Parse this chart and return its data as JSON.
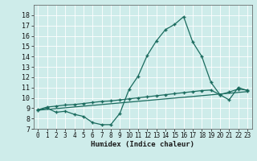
{
  "xlabel": "Humidex (Indice chaleur)",
  "bg_color": "#ceecea",
  "line_color": "#1a6b5e",
  "grid_color": "#b8dbd8",
  "xlim": [
    -0.5,
    23.5
  ],
  "ylim": [
    7,
    19
  ],
  "yticks": [
    7,
    8,
    9,
    10,
    11,
    12,
    13,
    14,
    15,
    16,
    17,
    18
  ],
  "xticks": [
    0,
    1,
    2,
    3,
    4,
    5,
    6,
    7,
    8,
    9,
    10,
    11,
    12,
    13,
    14,
    15,
    16,
    17,
    18,
    19,
    20,
    21,
    22,
    23
  ],
  "line1_x": [
    0,
    1,
    2,
    3,
    4,
    5,
    6,
    7,
    8,
    9,
    10,
    11,
    12,
    13,
    14,
    15,
    16,
    17,
    18,
    19,
    20,
    21,
    22,
    23
  ],
  "line1_y": [
    8.8,
    9.0,
    8.6,
    8.7,
    8.4,
    8.2,
    7.6,
    7.4,
    7.4,
    8.5,
    10.8,
    12.1,
    14.1,
    15.5,
    16.6,
    17.1,
    17.85,
    15.4,
    14.0,
    11.5,
    10.3,
    9.8,
    11.0,
    10.7
  ],
  "line2_x": [
    0,
    1,
    2,
    3,
    4,
    5,
    6,
    7,
    8,
    9,
    10,
    11,
    12,
    13,
    14,
    15,
    16,
    17,
    18,
    19,
    20,
    21,
    22,
    23
  ],
  "line2_y": [
    8.85,
    9.1,
    9.2,
    9.3,
    9.35,
    9.45,
    9.55,
    9.65,
    9.7,
    9.8,
    9.9,
    10.0,
    10.1,
    10.2,
    10.3,
    10.4,
    10.5,
    10.6,
    10.7,
    10.75,
    10.3,
    10.55,
    10.85,
    10.75
  ],
  "line3_x": [
    0,
    23
  ],
  "line3_y": [
    8.8,
    10.6
  ],
  "marker": "+",
  "markersize": 3,
  "linewidth": 0.9
}
